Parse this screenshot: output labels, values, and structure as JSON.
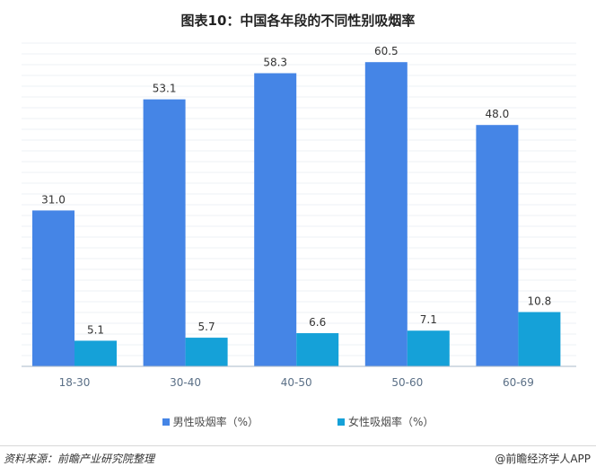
{
  "title": "图表10：中国各年段的不同性别吸烟率",
  "chart_data": {
    "type": "bar",
    "categories": [
      "18-30",
      "30-40",
      "40-50",
      "50-60",
      "60-69"
    ],
    "series": [
      {
        "name": "男性吸烟率（%）",
        "values": [
          31.0,
          53.1,
          58.3,
          60.5,
          48.0
        ],
        "color": "#4585e6"
      },
      {
        "name": "女性吸烟率（%）",
        "values": [
          5.1,
          5.7,
          6.6,
          7.1,
          10.8
        ],
        "color": "#15a1d8"
      }
    ],
    "value_labels": {
      "male": [
        "31.0",
        "53.1",
        "58.3",
        "60.5",
        "48.0"
      ],
      "female": [
        "5.1",
        "5.7",
        "6.6",
        "7.1",
        "10.8"
      ]
    },
    "ylim": [
      0,
      65
    ],
    "grid": true,
    "legend_position": "bottom"
  },
  "legend": {
    "male": "男性吸烟率（%）",
    "female": "女性吸烟率（%）"
  },
  "footer": {
    "source": "资料来源：前瞻产业研究院整理",
    "brand": "@前瞻经济学人APP"
  }
}
